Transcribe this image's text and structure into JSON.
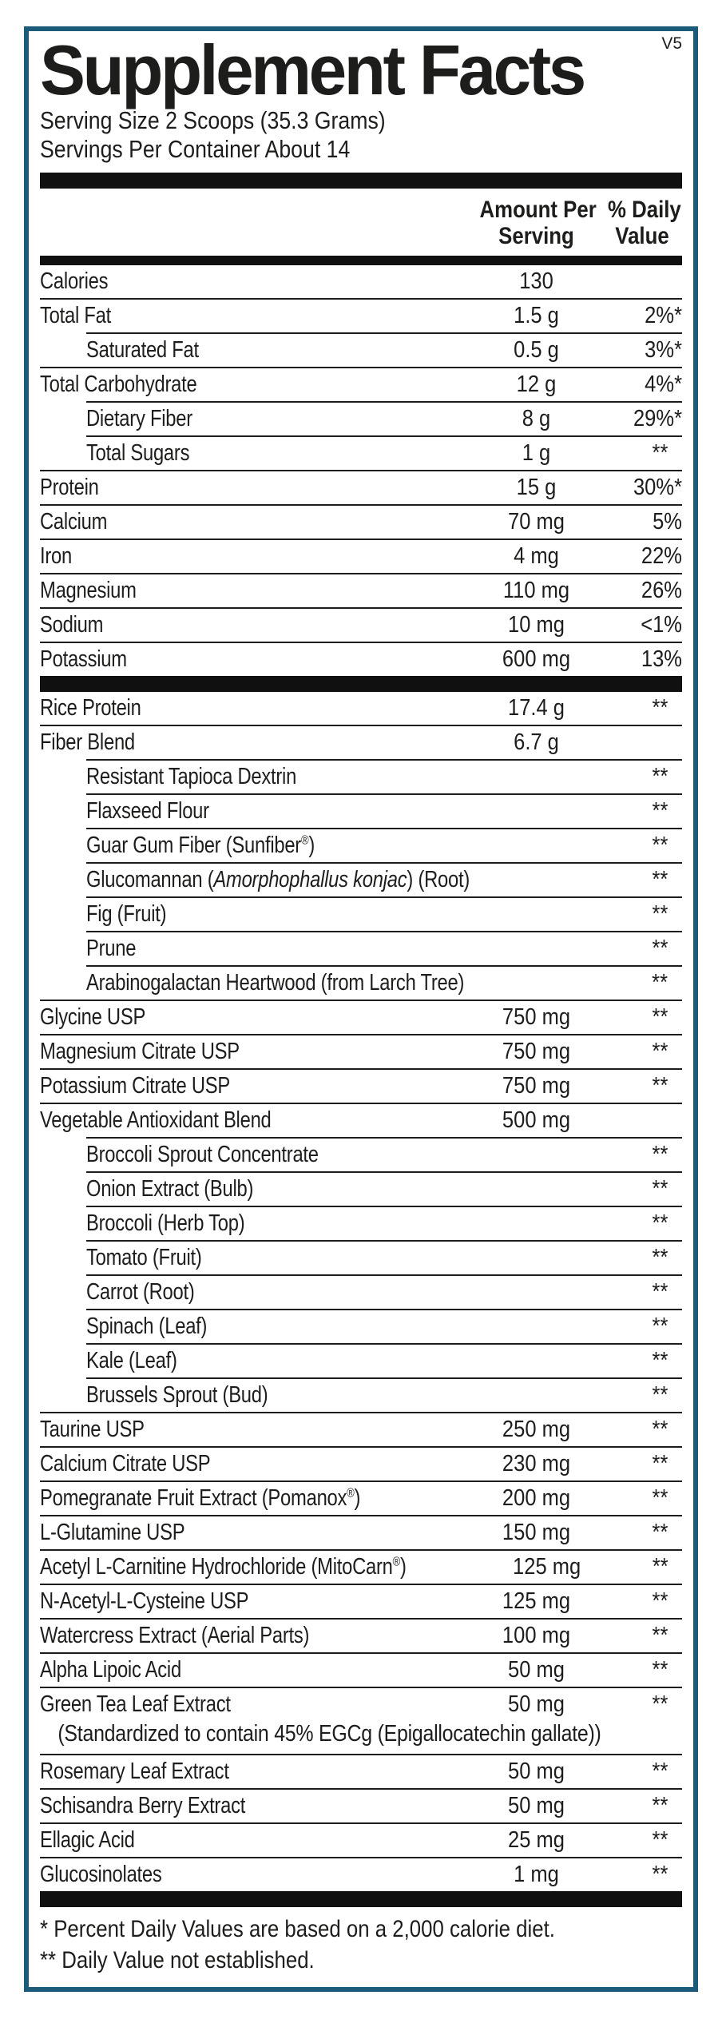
{
  "accent_color": "#1b5a78",
  "text_color": "#1d1d1b",
  "title": "Supplement Facts",
  "version": "V5",
  "serving": {
    "size_line": "Serving Size 2 Scoops (35.3 Grams)",
    "per_container_line": "Servings Per Container About 14"
  },
  "columns": {
    "amount_line1": "Amount Per",
    "amount_line2": "Serving",
    "dv_line1": "% Daily",
    "dv_line2": "Value"
  },
  "nutrients": [
    {
      "label": "Calories",
      "amount": "130",
      "dv": "",
      "indent": 0
    },
    {
      "label": "Total Fat",
      "amount": "1.5 g",
      "dv": "2%*",
      "indent": 0
    },
    {
      "label": "Saturated Fat",
      "amount": "0.5 g",
      "dv": "3%*",
      "indent": 1
    },
    {
      "label": "Total Carbohydrate",
      "amount": "12 g",
      "dv": "4%*",
      "indent": 0
    },
    {
      "label": "Dietary Fiber",
      "amount": "8 g",
      "dv": "29%*",
      "indent": 1
    },
    {
      "label": "Total Sugars",
      "amount": "1 g",
      "dv": "**",
      "indent": 1
    },
    {
      "label": "Protein",
      "amount": "15 g",
      "dv": "30%*",
      "indent": 0
    },
    {
      "label": "Calcium",
      "amount": "70 mg",
      "dv": "5%",
      "indent": 0
    },
    {
      "label": "Iron",
      "amount": "4 mg",
      "dv": "22%",
      "indent": 0
    },
    {
      "label": "Magnesium",
      "amount": "110 mg",
      "dv": "26%",
      "indent": 0
    },
    {
      "label": "Sodium",
      "amount": "10 mg",
      "dv": "<1%",
      "indent": 0
    },
    {
      "label": "Potassium",
      "amount": "600 mg",
      "dv": "13%",
      "indent": 0
    }
  ],
  "ingredients": [
    {
      "label": "Rice Protein",
      "amount": "17.4 g",
      "dv": "**",
      "indent": 0
    },
    {
      "label": "Fiber Blend",
      "amount": "6.7 g",
      "dv": "",
      "indent": 0
    },
    {
      "label": "Resistant Tapioca Dextrin",
      "amount": "",
      "dv": "**",
      "indent": 1
    },
    {
      "label": "Flaxseed Flour",
      "amount": "",
      "dv": "**",
      "indent": 1
    },
    {
      "parts": [
        [
          "Guar Gum Fiber (Sunfiber",
          ""
        ],
        [
          "®",
          "sup"
        ],
        [
          ")",
          ""
        ]
      ],
      "amount": "",
      "dv": "**",
      "indent": 1
    },
    {
      "parts": [
        [
          "Glucomannan (",
          ""
        ],
        [
          "Amorphophallus konjac",
          "i"
        ],
        [
          ") (Root)",
          ""
        ]
      ],
      "amount": "",
      "dv": "**",
      "indent": 1
    },
    {
      "label": "Fig (Fruit)",
      "amount": "",
      "dv": "**",
      "indent": 1
    },
    {
      "label": "Prune",
      "amount": "",
      "dv": "**",
      "indent": 1
    },
    {
      "label": "Arabinogalactan Heartwood (from Larch Tree)",
      "amount": "",
      "dv": "**",
      "indent": 1
    },
    {
      "label": "Glycine USP",
      "amount": "750 mg",
      "dv": "**",
      "indent": 0
    },
    {
      "label": "Magnesium Citrate USP",
      "amount": "750 mg",
      "dv": "**",
      "indent": 0
    },
    {
      "label": "Potassium Citrate USP",
      "amount": "750 mg",
      "dv": "**",
      "indent": 0
    },
    {
      "label": "Vegetable Antioxidant Blend",
      "amount": "500 mg",
      "dv": "",
      "indent": 0
    },
    {
      "label": "Broccoli Sprout Concentrate",
      "amount": "",
      "dv": "**",
      "indent": 1
    },
    {
      "label": "Onion Extract (Bulb)",
      "amount": "",
      "dv": "**",
      "indent": 1
    },
    {
      "label": "Broccoli (Herb Top)",
      "amount": "",
      "dv": "**",
      "indent": 1
    },
    {
      "label": "Tomato (Fruit)",
      "amount": "",
      "dv": "**",
      "indent": 1
    },
    {
      "label": "Carrot (Root)",
      "amount": "",
      "dv": "**",
      "indent": 1
    },
    {
      "label": "Spinach (Leaf)",
      "amount": "",
      "dv": "**",
      "indent": 1
    },
    {
      "label": "Kale (Leaf)",
      "amount": "",
      "dv": "**",
      "indent": 1
    },
    {
      "label": "Brussels Sprout (Bud)",
      "amount": "",
      "dv": "**",
      "indent": 1
    },
    {
      "label": "Taurine USP",
      "amount": "250 mg",
      "dv": "**",
      "indent": 0
    },
    {
      "label": "Calcium Citrate USP",
      "amount": "230 mg",
      "dv": "**",
      "indent": 0
    },
    {
      "parts": [
        [
          "Pomegranate Fruit Extract (Pomanox",
          ""
        ],
        [
          "®",
          "sup"
        ],
        [
          ")",
          ""
        ]
      ],
      "amount": "200 mg",
      "dv": "**",
      "indent": 0
    },
    {
      "label": "L-Glutamine USP",
      "amount": "150 mg",
      "dv": "**",
      "indent": 0
    },
    {
      "parts": [
        [
          "Acetyl L-Carnitine Hydrochloride (MitoCarn",
          ""
        ],
        [
          "®",
          "sup"
        ],
        [
          ")",
          ""
        ]
      ],
      "amount": "125 mg",
      "dv": "**",
      "indent": 0
    },
    {
      "label": "N-Acetyl-L-Cysteine USP",
      "amount": "125 mg",
      "dv": "**",
      "indent": 0
    },
    {
      "label": "Watercress Extract (Aerial Parts)",
      "amount": "100 mg",
      "dv": "**",
      "indent": 0
    },
    {
      "label": "Alpha Lipoic Acid",
      "amount": "50 mg",
      "dv": "**",
      "indent": 0
    },
    {
      "label": "Green Tea Leaf Extract",
      "amount": "50 mg",
      "dv": "**",
      "indent": 0,
      "note": "(Standardized to contain 45% EGCg (Epigallocatechin gallate))"
    },
    {
      "label": "Rosemary Leaf Extract",
      "amount": "50 mg",
      "dv": "**",
      "indent": 0
    },
    {
      "label": "Schisandra Berry Extract",
      "amount": "50 mg",
      "dv": "**",
      "indent": 0
    },
    {
      "label": "Ellagic Acid",
      "amount": "25 mg",
      "dv": "**",
      "indent": 0
    },
    {
      "label": "Glucosinolates",
      "amount": "1 mg",
      "dv": "**",
      "indent": 0
    }
  ],
  "footnotes": [
    "* Percent Daily Values are based on a 2,000 calorie diet.",
    "** Daily Value not established."
  ]
}
